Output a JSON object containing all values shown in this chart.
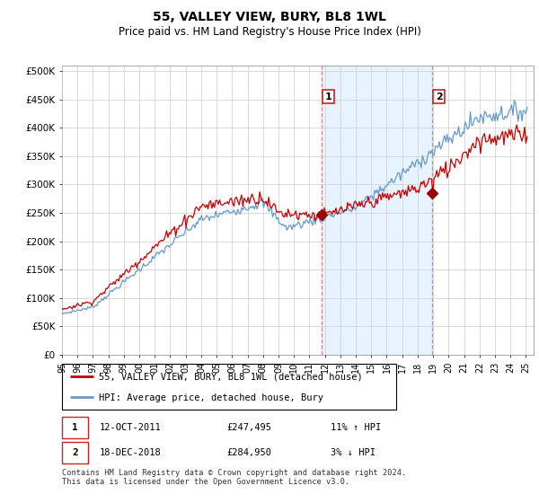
{
  "title": "55, VALLEY VIEW, BURY, BL8 1WL",
  "subtitle": "Price paid vs. HM Land Registry's House Price Index (HPI)",
  "ylabel_ticks": [
    "£0",
    "£50K",
    "£100K",
    "£150K",
    "£200K",
    "£250K",
    "£300K",
    "£350K",
    "£400K",
    "£450K",
    "£500K"
  ],
  "ytick_values": [
    0,
    50000,
    100000,
    150000,
    200000,
    250000,
    300000,
    350000,
    400000,
    450000,
    500000
  ],
  "ylim": [
    0,
    510000
  ],
  "xlim_start": 1995.0,
  "xlim_end": 2025.5,
  "red_line_color": "#cc0000",
  "blue_line_color": "#6699cc",
  "marker_color": "#990000",
  "marker1_x": 2011.78,
  "marker1_y": 247495,
  "marker2_x": 2018.96,
  "marker2_y": 284950,
  "vline1_x": 2011.78,
  "vline2_x": 2018.96,
  "vline_color": "#dd8888",
  "shade_color": "#ddeeff",
  "legend_red_label": "55, VALLEY VIEW, BURY, BL8 1WL (detached house)",
  "legend_blue_label": "HPI: Average price, detached house, Bury",
  "note1_date": "12-OCT-2011",
  "note1_price": "£247,495",
  "note1_hpi": "11% ↑ HPI",
  "note2_date": "18-DEC-2018",
  "note2_price": "£284,950",
  "note2_hpi": "3% ↓ HPI",
  "footer": "Contains HM Land Registry data © Crown copyright and database right 2024.\nThis data is licensed under the Open Government Licence v3.0.",
  "grid_color": "#cccccc",
  "anno_box_color": "#cc2222"
}
